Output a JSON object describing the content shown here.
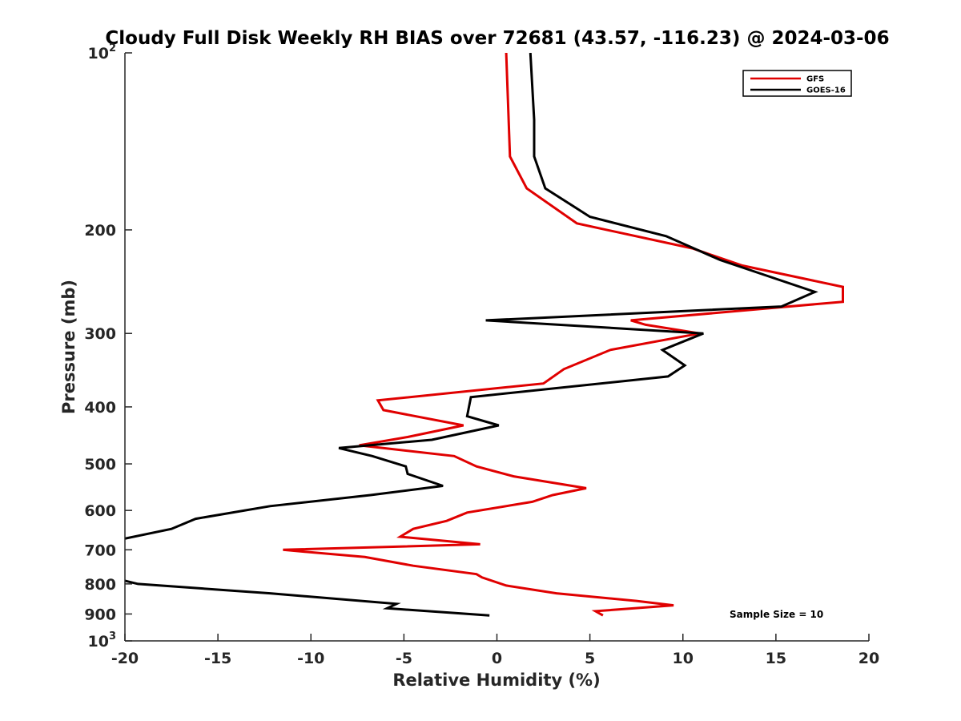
{
  "chart_data": {
    "type": "line",
    "title": "Cloudy Full Disk Weekly RH BIAS over 72681 (43.57, -116.23) @ 2024-03-06",
    "xlabel": "Relative Humidity (%)",
    "ylabel": "Pressure (mb)",
    "xlim": [
      -20,
      20
    ],
    "ylim": [
      1000,
      100
    ],
    "yscale": "log",
    "y_reversed": true,
    "grid": false,
    "legend_position": "top-right",
    "x_ticks": [
      -20,
      -15,
      -10,
      -5,
      0,
      5,
      10,
      15,
      20
    ],
    "x_tick_labels": [
      "-20",
      "-15",
      "-10",
      "-5",
      "0",
      "5",
      "10",
      "15",
      "20"
    ],
    "y_ticks": [
      100,
      200,
      300,
      400,
      500,
      600,
      700,
      800,
      900,
      1000
    ],
    "y_tick_labels": [
      {
        "base": "10",
        "exp": "2"
      },
      {
        "base": "200",
        "exp": ""
      },
      {
        "base": "300",
        "exp": ""
      },
      {
        "base": "400",
        "exp": ""
      },
      {
        "base": "500",
        "exp": ""
      },
      {
        "base": "600",
        "exp": ""
      },
      {
        "base": "700",
        "exp": ""
      },
      {
        "base": "800",
        "exp": ""
      },
      {
        "base": "900",
        "exp": ""
      },
      {
        "base": "10",
        "exp": "3"
      }
    ],
    "annotation": "Sample Size = 10",
    "series": [
      {
        "name": "GFS",
        "color": "#e00000",
        "points": [
          [
            0.5,
            100
          ],
          [
            0.7,
            150
          ],
          [
            1.6,
            170
          ],
          [
            4.3,
            195
          ],
          [
            10.5,
            215
          ],
          [
            13.2,
            230
          ],
          [
            18.6,
            250
          ],
          [
            18.6,
            265
          ],
          [
            7.2,
            285
          ],
          [
            8.0,
            290
          ],
          [
            10.9,
            300
          ],
          [
            6.1,
            320
          ],
          [
            3.6,
            345
          ],
          [
            2.5,
            365
          ],
          [
            -6.4,
            390
          ],
          [
            -6.1,
            405
          ],
          [
            -1.8,
            430
          ],
          [
            -4.8,
            450
          ],
          [
            -7.4,
            465
          ],
          [
            -2.3,
            485
          ],
          [
            -1.1,
            505
          ],
          [
            0.9,
            525
          ],
          [
            4.8,
            550
          ],
          [
            3.0,
            565
          ],
          [
            1.9,
            580
          ],
          [
            -1.6,
            605
          ],
          [
            -2.7,
            625
          ],
          [
            -4.5,
            645
          ],
          [
            -5.2,
            665
          ],
          [
            -0.9,
            685
          ],
          [
            -11.5,
            700
          ],
          [
            -7.1,
            720
          ],
          [
            -4.5,
            745
          ],
          [
            -1.1,
            770
          ],
          [
            -0.8,
            780
          ],
          [
            0.5,
            805
          ],
          [
            3.2,
            830
          ],
          [
            7.5,
            855
          ],
          [
            9.5,
            870
          ],
          [
            5.3,
            890
          ],
          [
            5.7,
            905
          ]
        ]
      },
      {
        "name": "GOES-16",
        "color": "#000000",
        "points": [
          [
            1.8,
            100
          ],
          [
            2.0,
            130
          ],
          [
            2.0,
            150
          ],
          [
            2.6,
            170
          ],
          [
            5.0,
            190
          ],
          [
            9.1,
            205
          ],
          [
            12.0,
            225
          ],
          [
            17.1,
            255
          ],
          [
            15.3,
            270
          ],
          [
            -0.6,
            285
          ],
          [
            11.1,
            300
          ],
          [
            8.9,
            320
          ],
          [
            10.1,
            340
          ],
          [
            9.2,
            355
          ],
          [
            -1.4,
            385
          ],
          [
            -1.6,
            415
          ],
          [
            0.1,
            430
          ],
          [
            -3.5,
            455
          ],
          [
            -8.5,
            470
          ],
          [
            -6.7,
            485
          ],
          [
            -4.9,
            505
          ],
          [
            -4.8,
            520
          ],
          [
            -2.9,
            545
          ],
          [
            -6.8,
            565
          ],
          [
            -12.2,
            590
          ],
          [
            -16.2,
            620
          ],
          [
            -17.5,
            645
          ],
          [
            -20,
            670
          ]
        ]
      },
      {
        "name": "GOES-16",
        "color": "#000000",
        "points": [
          [
            -20,
            790
          ],
          [
            -19.3,
            800
          ],
          [
            -12.2,
            830
          ],
          [
            -5.4,
            865
          ],
          [
            -5.9,
            880
          ],
          [
            -0.4,
            905
          ]
        ]
      }
    ]
  }
}
